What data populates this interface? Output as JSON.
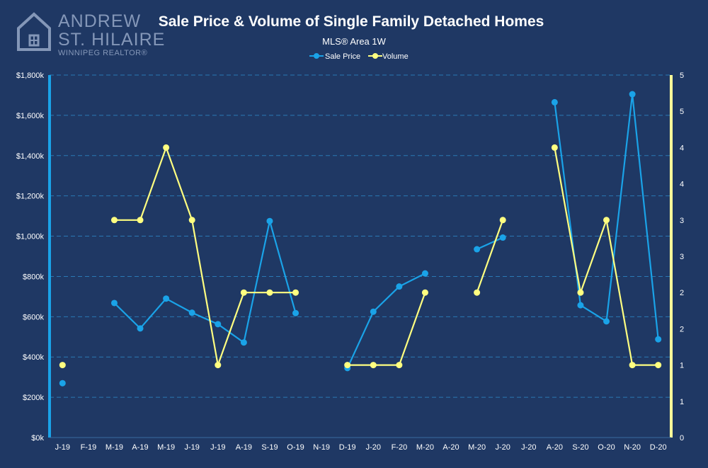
{
  "logo": {
    "line1": "ANDREW",
    "line2": "ST. HILAIRE",
    "line3": "WINNIPEG REALTOR®"
  },
  "chart_data": {
    "type": "line",
    "title": "Sale Price & Volume of Single Family Detached Homes",
    "subtitle": "MLS® Area 1W",
    "legend_position": "top-center",
    "grid": true,
    "categories": [
      "J-19",
      "F-19",
      "M-19",
      "A-19",
      "M-19",
      "J-19",
      "J-19",
      "A-19",
      "S-19",
      "O-19",
      "N-19",
      "D-19",
      "J-20",
      "F-20",
      "M-20",
      "A-20",
      "M-20",
      "J-20",
      "J-20",
      "A-20",
      "S-20",
      "O-20",
      "N-20",
      "D-20"
    ],
    "y_left": {
      "ylim": [
        0,
        1800000
      ],
      "ticks": [
        0,
        200000,
        400000,
        600000,
        800000,
        1000000,
        1200000,
        1400000,
        1600000,
        1800000
      ],
      "tick_labels": [
        "$0k",
        "$200k",
        "$400k",
        "$600k",
        "$800k",
        "$1,000k",
        "$1,200k",
        "$1,400k",
        "$1,600k",
        "$1,800k"
      ],
      "color": "#1aa3e8"
    },
    "y_right": {
      "ylim": [
        0,
        5
      ],
      "ticks": [
        0,
        0.5,
        1,
        1.5,
        2,
        2.5,
        3,
        3.5,
        4,
        4.5,
        5
      ],
      "tick_labels": [
        "0",
        "1",
        "1",
        "2",
        "2",
        "3",
        "3",
        "4",
        "4",
        "5",
        "5"
      ],
      "color": "#ffff99"
    },
    "series": [
      {
        "name": "Sale Price",
        "axis": "left",
        "color": "#1aa3e8",
        "values": [
          270000,
          null,
          668000,
          542000,
          690000,
          620000,
          563000,
          472000,
          1075000,
          618000,
          null,
          345000,
          625000,
          750000,
          815000,
          null,
          935000,
          993000,
          null,
          1665000,
          657000,
          577000,
          1705000,
          488000
        ]
      },
      {
        "name": "Volume",
        "axis": "right",
        "color": "#ffff80",
        "values": [
          1,
          null,
          3,
          3,
          4,
          3,
          1,
          2,
          2,
          2,
          null,
          1,
          1,
          1,
          2,
          null,
          2,
          3,
          null,
          4,
          2,
          3,
          1,
          1
        ]
      }
    ]
  }
}
